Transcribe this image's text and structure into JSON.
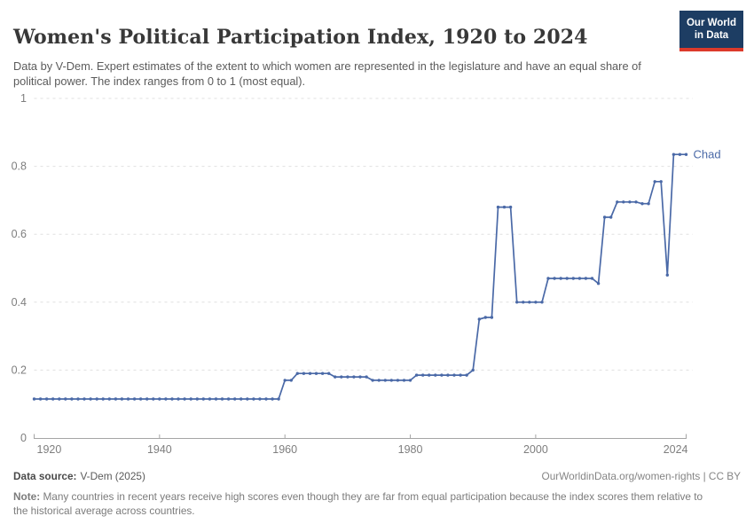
{
  "header": {
    "title": "Women's Political Participation Index, 1920 to 2024",
    "subtitle": "Data by V-Dem. Expert estimates of the extent to which women are represented in the legislature and have an equal share of political power. The index ranges from 0 to 1 (most equal).",
    "logo_line1": "Our World",
    "logo_line2": "in Data"
  },
  "chart_data": {
    "type": "line",
    "title": "Women's Political Participation Index, 1920 to 2024",
    "xlabel": "",
    "ylabel": "",
    "xlim": [
      1920,
      2024
    ],
    "ylim": [
      0,
      1
    ],
    "x_ticks": [
      1920,
      1940,
      1960,
      1980,
      2000,
      2024
    ],
    "y_ticks": [
      0,
      0.2,
      0.4,
      0.6,
      0.8,
      1
    ],
    "grid": "horizontal-dashed",
    "legend_position": "end-of-line-label",
    "series": [
      {
        "name": "Chad",
        "color": "#4a69a7",
        "points": [
          [
            1920,
            0.115
          ],
          [
            1921,
            0.115
          ],
          [
            1922,
            0.115
          ],
          [
            1923,
            0.115
          ],
          [
            1924,
            0.115
          ],
          [
            1925,
            0.115
          ],
          [
            1926,
            0.115
          ],
          [
            1927,
            0.115
          ],
          [
            1928,
            0.115
          ],
          [
            1929,
            0.115
          ],
          [
            1930,
            0.115
          ],
          [
            1931,
            0.115
          ],
          [
            1932,
            0.115
          ],
          [
            1933,
            0.115
          ],
          [
            1934,
            0.115
          ],
          [
            1935,
            0.115
          ],
          [
            1936,
            0.115
          ],
          [
            1937,
            0.115
          ],
          [
            1938,
            0.115
          ],
          [
            1939,
            0.115
          ],
          [
            1940,
            0.115
          ],
          [
            1941,
            0.115
          ],
          [
            1942,
            0.115
          ],
          [
            1943,
            0.115
          ],
          [
            1944,
            0.115
          ],
          [
            1945,
            0.115
          ],
          [
            1946,
            0.115
          ],
          [
            1947,
            0.115
          ],
          [
            1948,
            0.115
          ],
          [
            1949,
            0.115
          ],
          [
            1950,
            0.115
          ],
          [
            1951,
            0.115
          ],
          [
            1952,
            0.115
          ],
          [
            1953,
            0.115
          ],
          [
            1954,
            0.115
          ],
          [
            1955,
            0.115
          ],
          [
            1956,
            0.115
          ],
          [
            1957,
            0.115
          ],
          [
            1958,
            0.115
          ],
          [
            1959,
            0.115
          ],
          [
            1960,
            0.17
          ],
          [
            1961,
            0.17
          ],
          [
            1962,
            0.19
          ],
          [
            1963,
            0.19
          ],
          [
            1964,
            0.19
          ],
          [
            1965,
            0.19
          ],
          [
            1966,
            0.19
          ],
          [
            1967,
            0.19
          ],
          [
            1968,
            0.18
          ],
          [
            1969,
            0.18
          ],
          [
            1970,
            0.18
          ],
          [
            1971,
            0.18
          ],
          [
            1972,
            0.18
          ],
          [
            1973,
            0.18
          ],
          [
            1974,
            0.17
          ],
          [
            1975,
            0.17
          ],
          [
            1976,
            0.17
          ],
          [
            1977,
            0.17
          ],
          [
            1978,
            0.17
          ],
          [
            1979,
            0.17
          ],
          [
            1980,
            0.17
          ],
          [
            1981,
            0.185
          ],
          [
            1982,
            0.185
          ],
          [
            1983,
            0.185
          ],
          [
            1984,
            0.185
          ],
          [
            1985,
            0.185
          ],
          [
            1986,
            0.185
          ],
          [
            1987,
            0.185
          ],
          [
            1988,
            0.185
          ],
          [
            1989,
            0.185
          ],
          [
            1990,
            0.2
          ],
          [
            1991,
            0.35
          ],
          [
            1992,
            0.355
          ],
          [
            1993,
            0.355
          ],
          [
            1994,
            0.68
          ],
          [
            1995,
            0.68
          ],
          [
            1996,
            0.68
          ],
          [
            1997,
            0.4
          ],
          [
            1998,
            0.4
          ],
          [
            1999,
            0.4
          ],
          [
            2000,
            0.4
          ],
          [
            2001,
            0.4
          ],
          [
            2002,
            0.47
          ],
          [
            2003,
            0.47
          ],
          [
            2004,
            0.47
          ],
          [
            2005,
            0.47
          ],
          [
            2006,
            0.47
          ],
          [
            2007,
            0.47
          ],
          [
            2008,
            0.47
          ],
          [
            2009,
            0.47
          ],
          [
            2010,
            0.455
          ],
          [
            2011,
            0.65
          ],
          [
            2012,
            0.65
          ],
          [
            2013,
            0.695
          ],
          [
            2014,
            0.695
          ],
          [
            2015,
            0.695
          ],
          [
            2016,
            0.695
          ],
          [
            2017,
            0.69
          ],
          [
            2018,
            0.69
          ],
          [
            2019,
            0.755
          ],
          [
            2020,
            0.755
          ],
          [
            2021,
            0.48
          ],
          [
            2022,
            0.835
          ],
          [
            2023,
            0.835
          ],
          [
            2024,
            0.835
          ]
        ]
      }
    ]
  },
  "footer": {
    "source_label": "Data source:",
    "source_value": "V-Dem (2025)",
    "attribution": "OurWorldinData.org/women-rights | CC BY",
    "note_label": "Note:",
    "note_text": "Many countries in recent years receive high scores even though they are far from equal participation because the index scores them relative to the historical average across countries."
  },
  "colors": {
    "line": "#4a69a7",
    "grid": "#e0e0e0",
    "axis": "#a5a5a5",
    "tick_text": "#7e7e7e",
    "logo_bg": "#1d3d63",
    "logo_stripe": "#dc3a2b"
  }
}
